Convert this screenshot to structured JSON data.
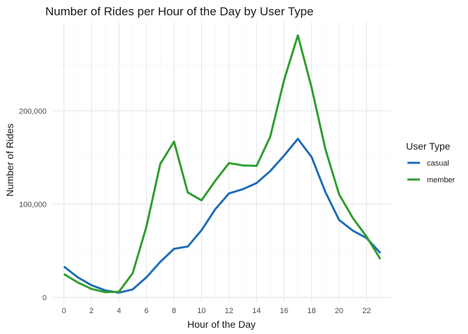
{
  "chart_data": {
    "type": "line",
    "title": "Number of Rides per Hour of the Day by User Type",
    "xlabel": "Hour of the Day",
    "ylabel": "Number of Rides",
    "x": [
      0,
      1,
      2,
      3,
      4,
      5,
      6,
      7,
      8,
      9,
      10,
      11,
      12,
      13,
      14,
      15,
      16,
      17,
      18,
      19,
      20,
      21,
      22,
      23
    ],
    "x_ticks": [
      0,
      2,
      4,
      6,
      8,
      10,
      12,
      14,
      16,
      18,
      20,
      22
    ],
    "x_tick_labels": [
      "0",
      "2",
      "4",
      "6",
      "8",
      "10",
      "12",
      "14",
      "16",
      "18",
      "20",
      "22"
    ],
    "y_ticks": [
      0,
      100000,
      200000
    ],
    "y_tick_labels": [
      "0",
      "100,000",
      "200,000"
    ],
    "xlim": [
      -0.8,
      23.8
    ],
    "ylim": [
      -5000,
      295000
    ],
    "grid": true,
    "legend": {
      "title": "User Type",
      "position": "right"
    },
    "series": [
      {
        "name": "casual",
        "color": "#1f6db5",
        "values": [
          33000,
          21500,
          13000,
          7500,
          5000,
          8500,
          21500,
          38000,
          52000,
          54500,
          72000,
          94500,
          111500,
          116000,
          122500,
          135500,
          152000,
          170000,
          150500,
          113000,
          83000,
          71500,
          63500,
          47500
        ]
      },
      {
        "name": "member",
        "color": "#2e9e2e",
        "values": [
          25000,
          16000,
          9000,
          5500,
          6000,
          26000,
          76000,
          143000,
          167000,
          112500,
          104000,
          125000,
          144000,
          141500,
          141000,
          172500,
          233000,
          281000,
          225000,
          159000,
          110500,
          85000,
          65000,
          41000
        ]
      }
    ]
  }
}
